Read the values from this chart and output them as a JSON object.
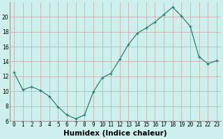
{
  "xlabel": "Humidex (Indice chaleur)",
  "x": [
    0,
    1,
    2,
    3,
    4,
    5,
    6,
    7,
    8,
    9,
    10,
    11,
    12,
    13,
    14,
    15,
    16,
    17,
    18,
    19,
    20,
    21,
    22,
    23
  ],
  "y": [
    12.5,
    10.2,
    10.6,
    10.1,
    9.3,
    7.9,
    6.8,
    6.3,
    6.8,
    9.9,
    11.8,
    12.4,
    14.3,
    16.3,
    17.8,
    18.5,
    19.3,
    20.3,
    21.3,
    20.1,
    18.7,
    14.6,
    13.7,
    14.1
  ],
  "line_color": "#2e7d6e",
  "marker": "+",
  "marker_size": 3.5,
  "bg_color": "#cef0ec",
  "grid_color": "#c0a8a8",
  "ylim": [
    6,
    22
  ],
  "xlim": [
    -0.5,
    23.5
  ],
  "yticks": [
    6,
    8,
    10,
    12,
    14,
    16,
    18,
    20
  ],
  "xtick_labels": [
    "0",
    "1",
    "2",
    "3",
    "4",
    "5",
    "6",
    "7",
    "8",
    "9",
    "1011",
    "1213",
    "1415",
    "1617",
    "1819",
    "2021",
    "2223"
  ],
  "label_fontsize": 6.5,
  "tick_fontsize": 5.5,
  "xlabel_fontsize": 7.5
}
